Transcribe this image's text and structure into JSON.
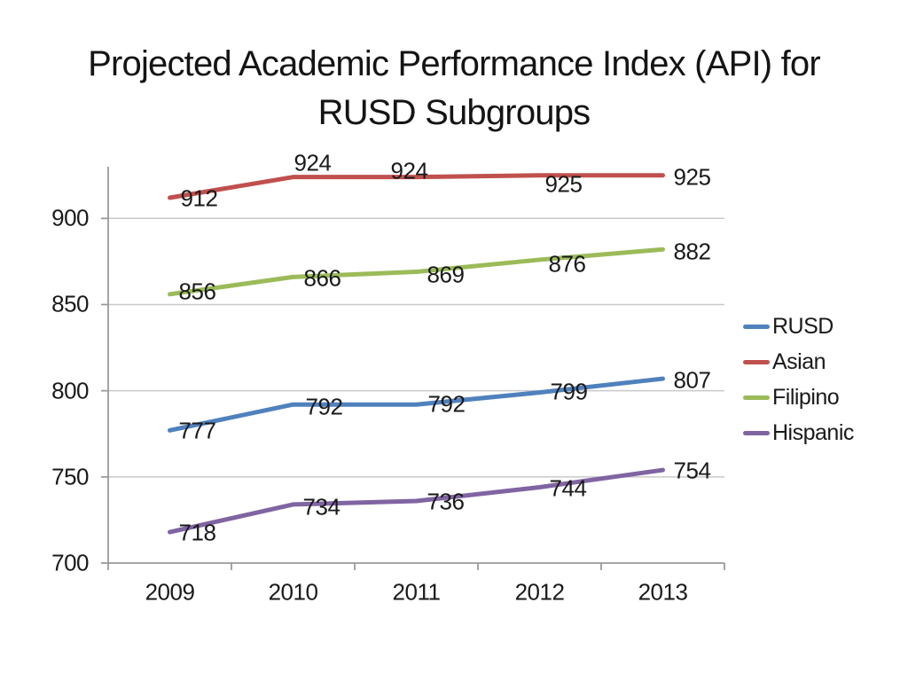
{
  "header": {
    "title_line1": "Projected Academic Performance Index (API) for",
    "title_line2": "RUSD Subgroups"
  },
  "chart_data": {
    "type": "line",
    "title": "Projected Academic Performance Index (API) for RUSD Subgroups",
    "xlabel": "",
    "ylabel": "",
    "x": [
      "2009",
      "2010",
      "2011",
      "2012",
      "2013"
    ],
    "series": [
      {
        "name": "RUSD",
        "color": "#4F81BD",
        "values": [
          777,
          792,
          792,
          799,
          807
        ],
        "label_offsets": [
          [
            31,
            1
          ],
          [
            35,
            3
          ],
          [
            34,
            0
          ],
          [
            33,
            -1
          ],
          [
            33,
            2
          ]
        ]
      },
      {
        "name": "Asian",
        "color": "#C0504D",
        "values": [
          912,
          924,
          924,
          925,
          925
        ],
        "label_offsets": [
          [
            33,
            1
          ],
          [
            22,
            -16
          ],
          [
            -8,
            -7
          ],
          [
            27,
            10
          ],
          [
            33,
            2
          ]
        ]
      },
      {
        "name": "Filipino",
        "color": "#9BBB59",
        "values": [
          856,
          866,
          869,
          876,
          882
        ],
        "label_offsets": [
          [
            31,
            -3
          ],
          [
            33,
            2
          ],
          [
            33,
            3
          ],
          [
            31,
            5
          ],
          [
            33,
            3
          ]
        ]
      },
      {
        "name": "Hispanic",
        "color": "#8064A2",
        "values": [
          718,
          734,
          736,
          744,
          754
        ],
        "label_offsets": [
          [
            31,
            1
          ],
          [
            32,
            3
          ],
          [
            33,
            1
          ],
          [
            32,
            2
          ],
          [
            33,
            1
          ]
        ]
      }
    ],
    "ylim": [
      700,
      930
    ],
    "yticks": [
      700,
      750,
      800,
      850,
      900
    ],
    "grid": true,
    "data_labels": true,
    "legend_position": "right",
    "line_width": 5,
    "grid_color": "#c9c9c9",
    "axis_color": "#9a9a9a",
    "label_color": "#1a1a1a"
  }
}
